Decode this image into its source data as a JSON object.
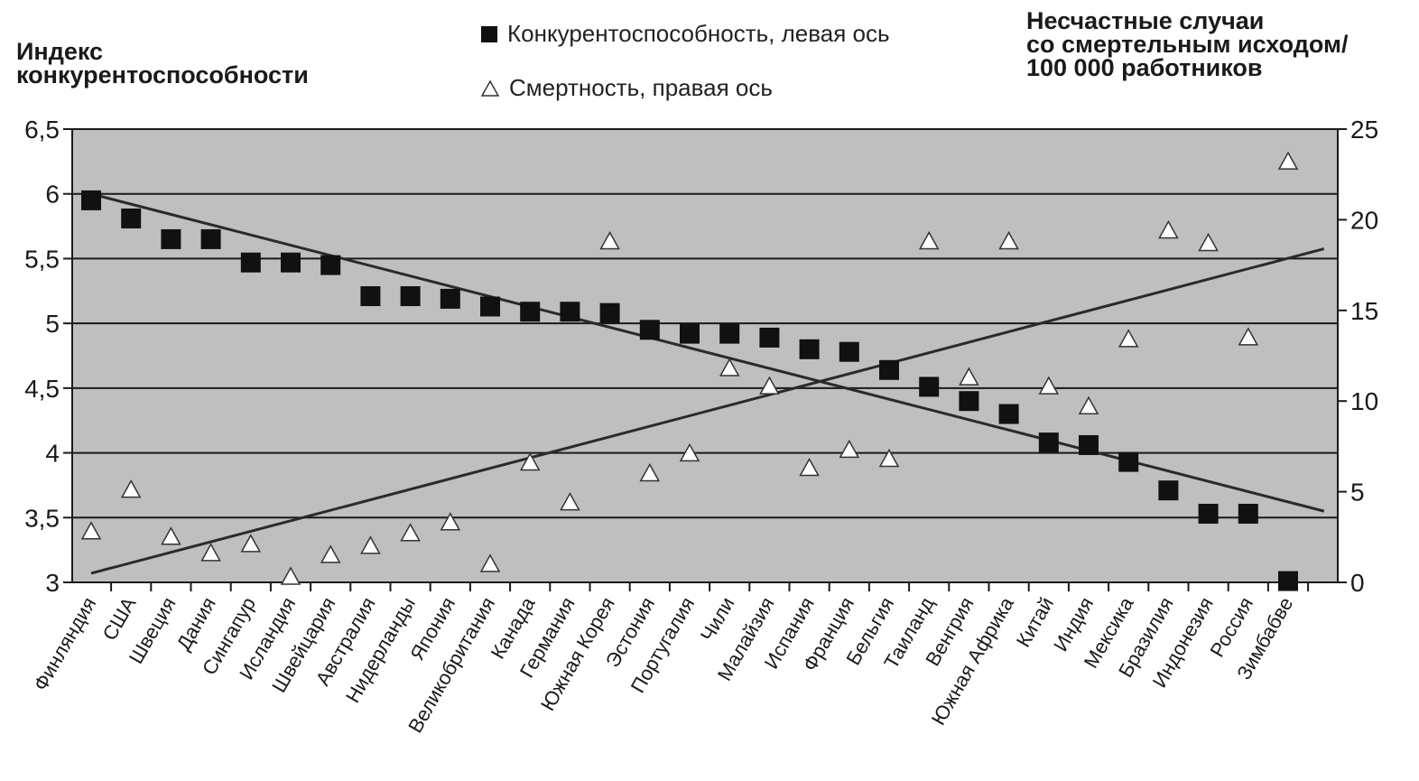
{
  "chart_data": {
    "type": "scatter",
    "title": "",
    "ylabel_left_lines": [
      "Индекс",
      "конкурентоспособности"
    ],
    "ylabel_right_lines": [
      "Несчастные случаи",
      "со смертельным исходом/",
      "100 000 работников"
    ],
    "xlabel": "",
    "categories": [
      "Финляндия",
      "США",
      "Швеция",
      "Дания",
      "Сингапур",
      "Исландия",
      "Швейцария",
      "Австралия",
      "Нидерланды",
      "Япония",
      "Великобритания",
      "Канада",
      "Германия",
      "Южная Корея",
      "Эстония",
      "Португалия",
      "Чили",
      "Малайзия",
      "Испания",
      "Франция",
      "Бельгия",
      "Таиланд",
      "Венгрия",
      "Южная Африка",
      "Китай",
      "Индия",
      "Мексика",
      "Бразилия",
      "Индонезия",
      "Россия",
      "Зимбабве"
    ],
    "left_axis": {
      "ylim": [
        3,
        6.5
      ],
      "ticks": [
        "3",
        "3,5",
        "4",
        "4,5",
        "5",
        "5,5",
        "6",
        "6,5"
      ],
      "tick_values": [
        3,
        3.5,
        4,
        4.5,
        5,
        5.5,
        6,
        6.5
      ]
    },
    "right_axis": {
      "ylim": [
        0,
        25
      ],
      "ticks": [
        "0",
        "5",
        "10",
        "15",
        "20",
        "25"
      ],
      "tick_values": [
        0,
        5,
        10,
        15,
        20,
        25
      ]
    },
    "series": [
      {
        "name": "Конкурентоспособность, левая ось",
        "axis": "left",
        "marker": "square",
        "color": "#111111",
        "values": [
          5.95,
          5.81,
          5.65,
          5.65,
          5.47,
          5.47,
          5.45,
          5.21,
          5.21,
          5.19,
          5.13,
          5.09,
          5.09,
          5.08,
          4.95,
          4.92,
          4.92,
          4.89,
          4.8,
          4.78,
          4.64,
          4.51,
          4.4,
          4.3,
          4.08,
          4.06,
          3.93,
          3.71,
          3.53,
          3.53,
          3.01
        ]
      },
      {
        "name": "Смертность, правая ось",
        "axis": "right",
        "marker": "triangle",
        "color": "#ffffff",
        "values": [
          2.8,
          5.1,
          2.5,
          1.6,
          2.1,
          0.3,
          1.5,
          2.0,
          2.7,
          3.3,
          1.0,
          6.6,
          4.4,
          18.8,
          6.0,
          7.1,
          11.8,
          10.8,
          6.3,
          7.3,
          6.8,
          18.8,
          11.3,
          18.8,
          10.8,
          9.7,
          13.4,
          19.4,
          18.7,
          13.5,
          23.2
        ]
      }
    ],
    "trendlines": [
      {
        "series": "Конкурентоспособность, левая ось",
        "axis": "left",
        "from": [
          0,
          6.0
        ],
        "to": [
          30.9,
          3.55
        ]
      },
      {
        "series": "Смертность, правая ось",
        "axis": "right",
        "from": [
          0,
          0.5
        ],
        "to": [
          30.9,
          18.4
        ]
      }
    ],
    "grid": true,
    "plot_background": "#bfbfbf",
    "legend_position": "top-center"
  }
}
